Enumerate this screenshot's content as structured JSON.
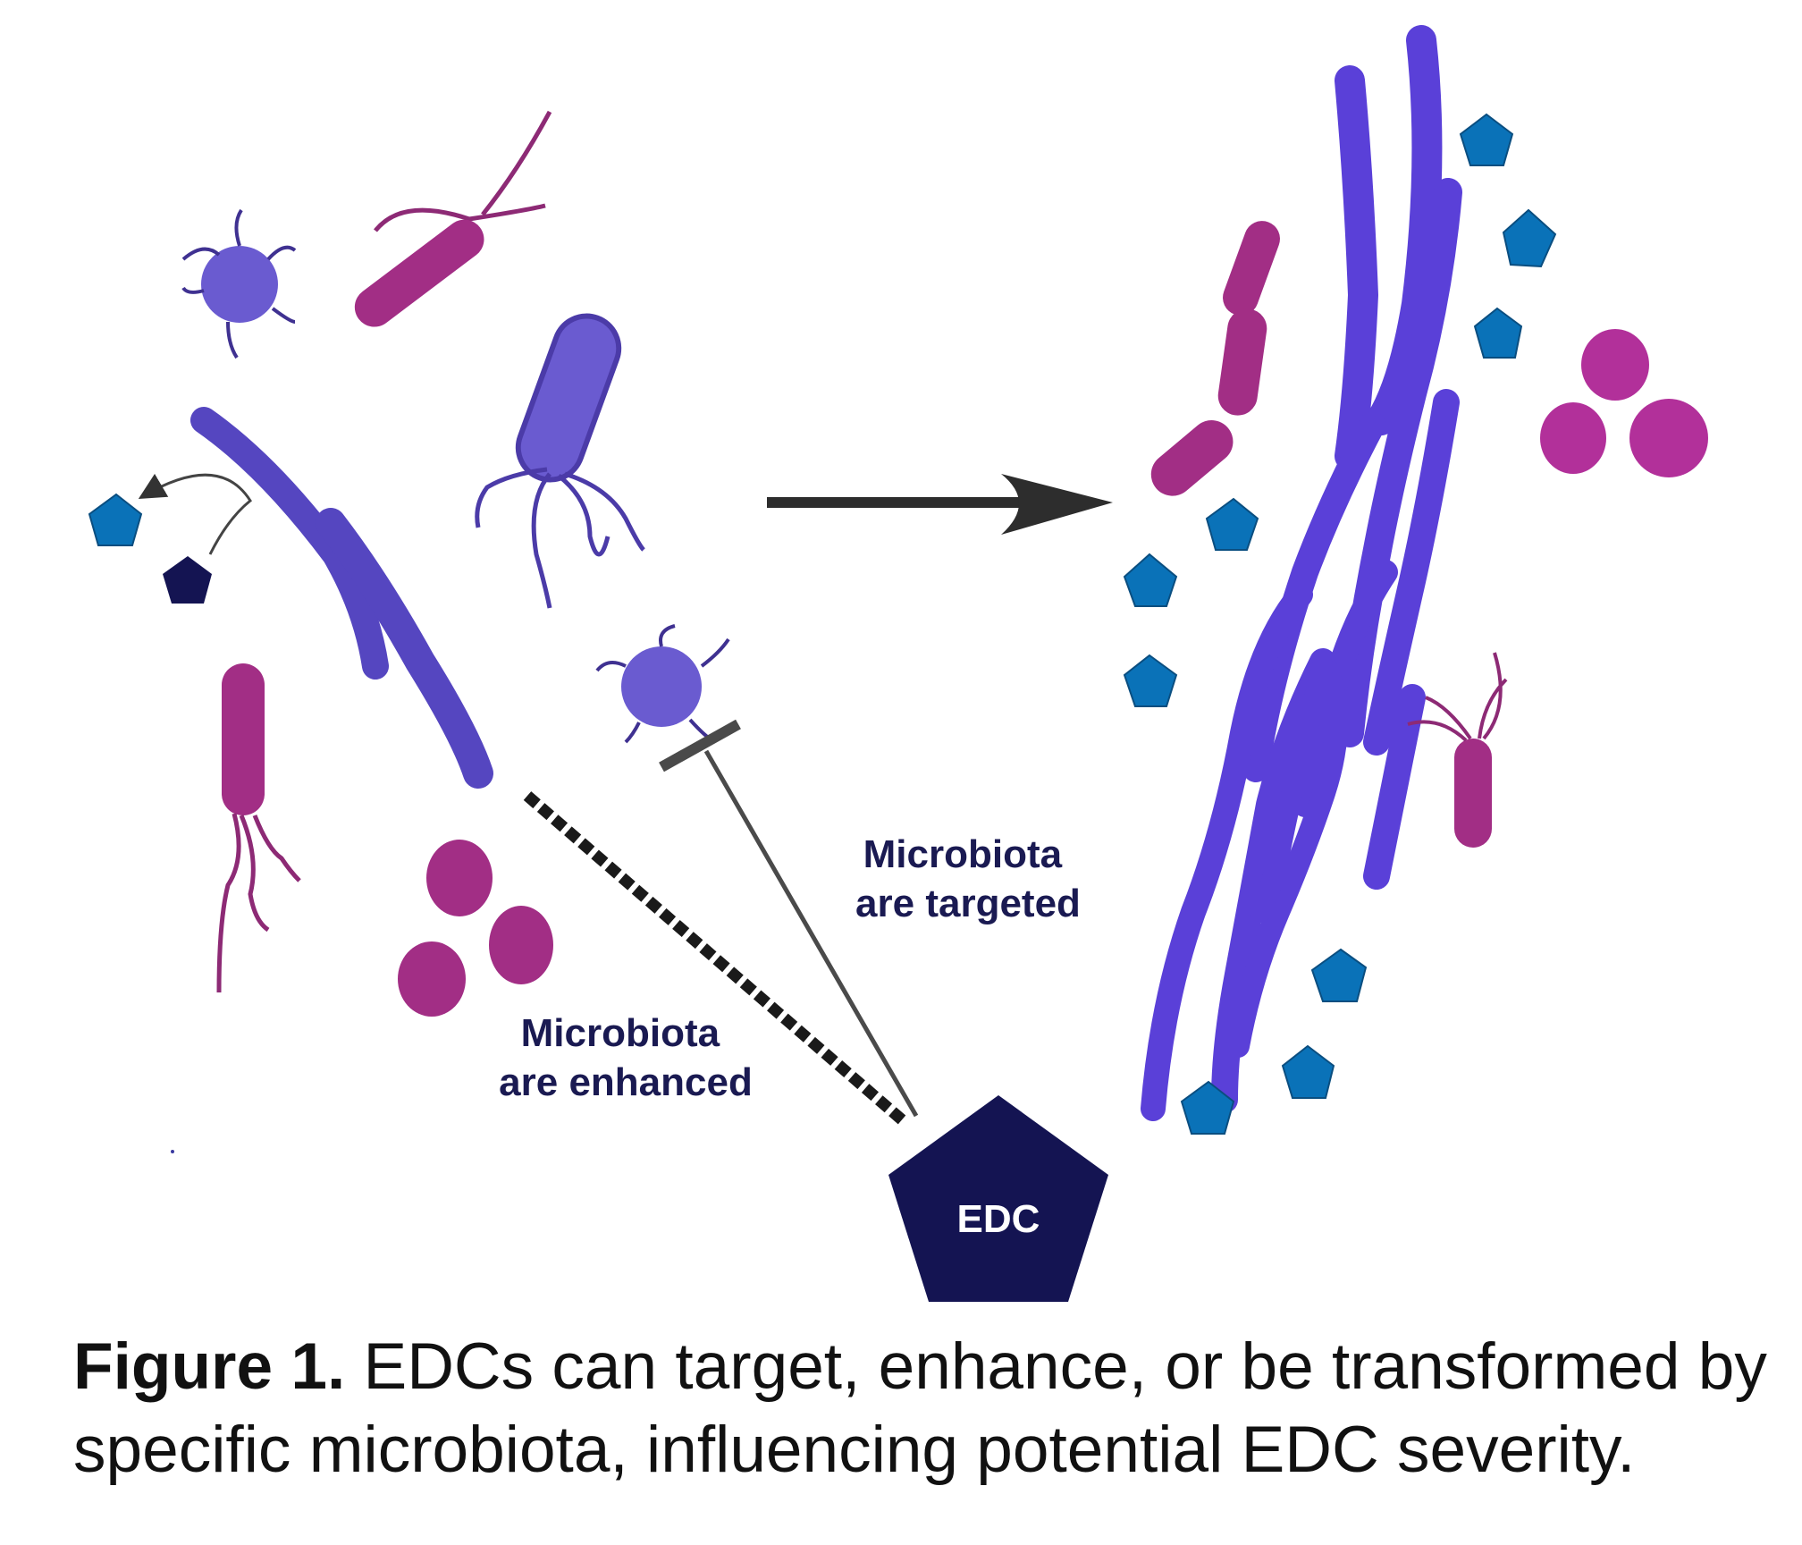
{
  "figure": {
    "edc_label": "EDC",
    "label_targeted": [
      "Microbiota",
      "are targeted"
    ],
    "label_enhanced": [
      "Microbiota",
      "are enhanced"
    ],
    "caption_bold": "Figure 1.",
    "caption_text": " EDCs can target, enhance, or be transformed by specific microbiota, influencing potential EDC severity."
  },
  "colors": {
    "violet_rod": "#5546c0",
    "violet_light": "#6a5bd0",
    "magenta": "#a22e85",
    "magenta_coccus": "#b2309a",
    "pentagon_blue": "#0a72b8",
    "pentagon_dark": "#141452",
    "label_navy": "#1a1a52",
    "arrow_dark": "#2d2d2d"
  }
}
